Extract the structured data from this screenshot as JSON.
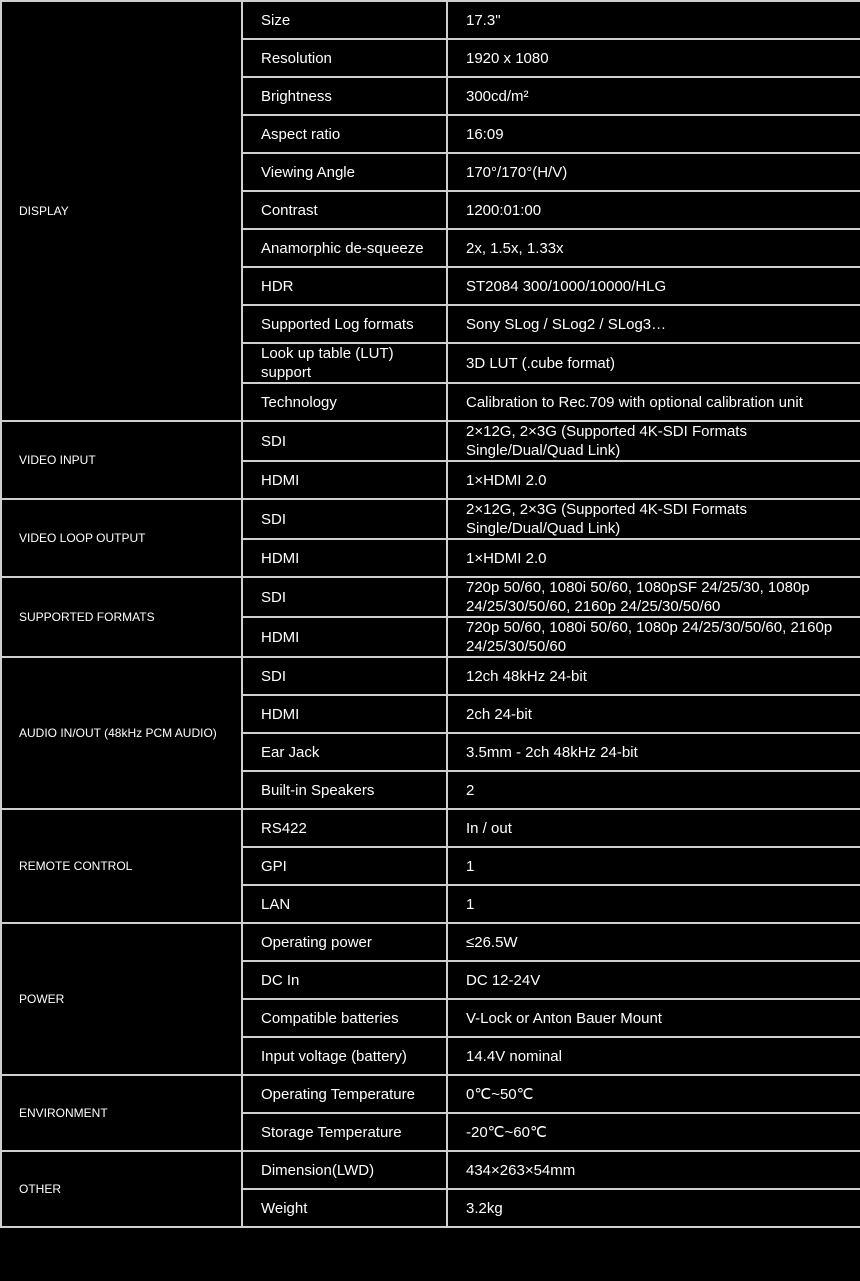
{
  "groups": [
    {
      "category": "DISPLAY",
      "rows": [
        {
          "label": "Size",
          "value": "17.3\""
        },
        {
          "label": "Resolution",
          "value": "1920 x 1080"
        },
        {
          "label": "Brightness",
          "value": "300cd/m²"
        },
        {
          "label": "Aspect ratio",
          "value": "16:09"
        },
        {
          "label": "Viewing Angle",
          "value": "170°/170°(H/V)"
        },
        {
          "label": "Contrast",
          "value": "1200:01:00"
        },
        {
          "label": "Anamorphic de-squeeze",
          "value": "2x, 1.5x, 1.33x"
        },
        {
          "label": "HDR",
          "value": "ST2084 300/1000/10000/HLG"
        },
        {
          "label": "Supported Log formats",
          "value": "Sony SLog / SLog2 / SLog3…"
        },
        {
          "label": "Look up table (LUT) support",
          "value": "3D LUT (.cube format)"
        },
        {
          "label": "Technology",
          "value": "Calibration to Rec.709 with optional calibration unit"
        }
      ]
    },
    {
      "category": "VIDEO INPUT",
      "rows": [
        {
          "label": "SDI",
          "value": "2×12G, 2×3G (Supported 4K-SDI Formats Single/Dual/Quad Link)"
        },
        {
          "label": "HDMI",
          "value": "1×HDMI 2.0"
        }
      ]
    },
    {
      "category": "VIDEO LOOP OUTPUT",
      "rows": [
        {
          "label": "SDI",
          "value": "2×12G, 2×3G (Supported 4K-SDI Formats Single/Dual/Quad Link)"
        },
        {
          "label": "HDMI",
          "value": "1×HDMI 2.0"
        }
      ]
    },
    {
      "category": "SUPPORTED FORMATS",
      "rows": [
        {
          "label": "SDI",
          "value": "720p 50/60, 1080i 50/60, 1080pSF 24/25/30, 1080p 24/25/30/50/60, 2160p 24/25/30/50/60"
        },
        {
          "label": "HDMI",
          "value": "720p 50/60, 1080i 50/60, 1080p 24/25/30/50/60, 2160p 24/25/30/50/60"
        }
      ]
    },
    {
      "category": "AUDIO IN/OUT (48kHz PCM AUDIO)",
      "rows": [
        {
          "label": "SDI",
          "value": "12ch 48kHz 24-bit"
        },
        {
          "label": "HDMI",
          "value": "2ch 24-bit"
        },
        {
          "label": "Ear Jack",
          "value": "3.5mm - 2ch 48kHz 24-bit"
        },
        {
          "label": "Built-in Speakers",
          "value": "2"
        }
      ]
    },
    {
      "category": "REMOTE CONTROL",
      "rows": [
        {
          "label": "RS422",
          "value": "In / out"
        },
        {
          "label": "GPI",
          "value": "1"
        },
        {
          "label": "LAN",
          "value": "1"
        }
      ]
    },
    {
      "category": "POWER",
      "rows": [
        {
          "label": "Operating power",
          "value": "≤26.5W"
        },
        {
          "label": "DC In",
          "value": "DC 12-24V"
        },
        {
          "label": "Compatible batteries",
          "value": "V-Lock or Anton Bauer Mount"
        },
        {
          "label": "Input voltage (battery)",
          "value": "14.4V nominal"
        }
      ]
    },
    {
      "category": "ENVIRONMENT",
      "rows": [
        {
          "label": "Operating Temperature",
          "value": "0℃~50℃"
        },
        {
          "label": "Storage Temperature",
          "value": "-20℃~60℃"
        }
      ]
    },
    {
      "category": "OTHER",
      "rows": [
        {
          "label": "Dimension(LWD)",
          "value": "434×263×54mm"
        },
        {
          "label": "Weight",
          "value": "3.2kg"
        }
      ]
    }
  ]
}
